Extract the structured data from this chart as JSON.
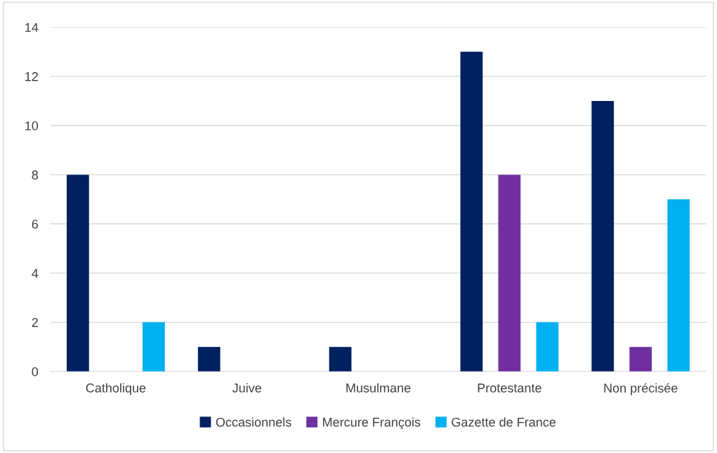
{
  "chart_data": {
    "type": "bar",
    "categories": [
      "Catholique",
      "Juive",
      "Musulmane",
      "Protestante",
      "Non précisée"
    ],
    "series": [
      {
        "name": "Occasionnels",
        "color": "#002060",
        "values": [
          8,
          1,
          1,
          13,
          11
        ]
      },
      {
        "name": "Mercure François",
        "color": "#7030a0",
        "values": [
          0,
          0,
          0,
          8,
          1
        ]
      },
      {
        "name": "Gazette de France",
        "color": "#00b0f0",
        "values": [
          2,
          0,
          0,
          2,
          7
        ]
      }
    ],
    "ylim": [
      0,
      14
    ],
    "yticks": [
      0,
      2,
      4,
      6,
      8,
      10,
      12,
      14
    ],
    "grid": "y",
    "legend": "bottom"
  }
}
